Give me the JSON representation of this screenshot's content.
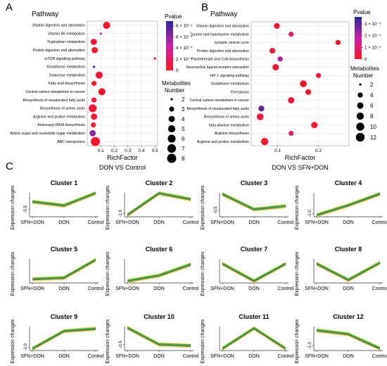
{
  "panels": {
    "a": "A",
    "b": "B",
    "c": "C"
  },
  "chart_data": [
    {
      "type": "scatter",
      "panel": "A",
      "title": "Pathway",
      "xlabel": "RichFactor",
      "subtitle": "DON VS Control",
      "xlim": [
        0.0,
        0.52
      ],
      "xticks": [
        0.1,
        0.2,
        0.3,
        0.4,
        0.5
      ],
      "xticklabels": [
        "0.1",
        "0.2",
        "0.3",
        "0.4",
        "0.5"
      ],
      "grid": true,
      "pvalue_legend": {
        "title": "Pvalue",
        "ticks": [
          0,
          0.0002,
          0.0004,
          0.0006,
          0.0008
        ],
        "labels": [
          "0",
          "2 × 10⁻⁴",
          "4 × 10⁻⁴",
          "6 × 10⁻⁴",
          "8 × 10⁻⁴"
        ],
        "max": 0.00088
      },
      "size_legend": {
        "title": [
          "Metabolites",
          "Number"
        ],
        "values": [
          2,
          3,
          4,
          5,
          6,
          7,
          8
        ]
      },
      "points": [
        {
          "pathway": "Vitamin digestion and absorption",
          "rich": 0.143,
          "number": 5,
          "p": 2e-05
        },
        {
          "pathway": "Vitamin B6 metabolism",
          "rich": 0.1,
          "number": 2,
          "p": 0.00045
        },
        {
          "pathway": "Tryptophan metabolism",
          "rich": 0.048,
          "number": 4,
          "p": 4e-05
        },
        {
          "pathway": "Protein digestion and absorption",
          "rich": 0.055,
          "number": 4,
          "p": 3e-05
        },
        {
          "pathway": "mTOR signaling pathway",
          "rich": 0.5,
          "number": 2,
          "p": 3e-05
        },
        {
          "pathway": "Glutathione metabolism",
          "rich": 0.05,
          "number": 2,
          "p": 0.00085
        },
        {
          "pathway": "Galactose metabolism",
          "rich": 0.088,
          "number": 5,
          "p": 3e-05
        },
        {
          "pathway": "Fatty acid biosynthesis",
          "rich": 0.05,
          "number": 3,
          "p": 5e-05
        },
        {
          "pathway": "Central carbon metabolism in cancer",
          "rich": 0.108,
          "number": 5,
          "p": 2e-05
        },
        {
          "pathway": "Biosynthesis of unsaturated fatty acids",
          "rich": 0.05,
          "number": 3,
          "p": 3e-05
        },
        {
          "pathway": "Biosynthesis of amino acids",
          "rich": 0.04,
          "number": 6,
          "p": 4e-05
        },
        {
          "pathway": "Arginine and proline metabolism",
          "rich": 0.05,
          "number": 4,
          "p": 3e-05
        },
        {
          "pathway": "Aminoacyl-tRNA biosynthesis",
          "rich": 0.045,
          "number": 3,
          "p": 5e-05
        },
        {
          "pathway": "Amino sugar and nucleotide sugar metabolism",
          "rich": 0.04,
          "number": 4,
          "p": 0.0006
        },
        {
          "pathway": "ABC transporters",
          "rich": 0.06,
          "number": 8,
          "p": 2e-05
        }
      ]
    },
    {
      "type": "scatter",
      "panel": "B",
      "title": "Pathway",
      "xlabel": "RichFactor",
      "subtitle": "DON VS SFN+DON",
      "xlim": [
        0.035,
        0.275
      ],
      "xticks": [
        0.1,
        0.2
      ],
      "xticklabels": [
        "0.1",
        "0.2"
      ],
      "grid": true,
      "pvalue_legend": {
        "title": "Pvalue",
        "ticks": [
          0,
          0.0001,
          0.0002,
          0.0003
        ],
        "labels": [
          "0",
          "1 × 10⁻⁴",
          "2 × 10⁻⁴",
          "3 × 10⁻⁴"
        ],
        "max": 0.00036
      },
      "size_legend": {
        "title": [
          "Metabolites",
          "Number"
        ],
        "values": [
          2,
          4,
          6,
          8,
          10,
          12
        ]
      },
      "points": [
        {
          "pathway": "Vitamin digestion and absorption",
          "rich": 0.098,
          "number": 5,
          "p": 1e-05
        },
        {
          "pathway": "Taurine and hypotaurine metabolism",
          "rich": 0.133,
          "number": 4,
          "p": 9e-05
        },
        {
          "pathway": "synaptic vesicle cycle",
          "rich": 0.248,
          "number": 4,
          "p": 1e-05
        },
        {
          "pathway": "Protein digestion and absorption",
          "rich": 0.087,
          "number": 5,
          "p": 3e-05
        },
        {
          "pathway": "Pantothenate and CoA biosynthesis",
          "rich": 0.106,
          "number": 4,
          "p": 0.0002
        },
        {
          "pathway": "Neuroactive ligand-receptor interaction",
          "rich": 0.095,
          "number": 6,
          "p": 1e-05
        },
        {
          "pathway": "HIF-1 signaling pathway",
          "rich": 0.2,
          "number": 4,
          "p": 1e-05
        },
        {
          "pathway": "Glutathione metabolism",
          "rich": 0.163,
          "number": 7,
          "p": 1e-05
        },
        {
          "pathway": "Ferroptosis",
          "rich": 0.175,
          "number": 5,
          "p": 1e-05
        },
        {
          "pathway": "Central carbon metabolism in cancer",
          "rich": 0.133,
          "number": 6,
          "p": 2e-05
        },
        {
          "pathway": "Biosynthesis of unsaturated fatty acids",
          "rich": 0.06,
          "number": 5,
          "p": 0.0003
        },
        {
          "pathway": "Biosynthesis of amino acids",
          "rich": 0.057,
          "number": 7,
          "p": 2e-05
        },
        {
          "pathway": "beta-Alanine metabolism",
          "rich": 0.19,
          "number": 6,
          "p": 1e-05
        },
        {
          "pathway": "Arginine biosynthesis",
          "rich": 0.133,
          "number": 4,
          "p": 0.0001
        },
        {
          "pathway": "Arginine and proline metabolism",
          "rich": 0.068,
          "number": 8,
          "p": 1e-05
        }
      ]
    },
    {
      "type": "line",
      "panel": "C",
      "ylabel": "Expression changes",
      "categories": [
        "SFN+DON",
        "DON",
        "Control"
      ],
      "clusters": [
        {
          "name": "Cluster 1",
          "ytick": "-0.5",
          "ylim": [
            -1.0,
            0.6
          ],
          "tickval": -0.5,
          "values": [
            0.0,
            -0.25,
            0.58
          ]
        },
        {
          "name": "Cluster 2",
          "ytick": "-1.0",
          "ylim": [
            -1.3,
            0.9
          ],
          "tickval": -1.0,
          "values": [
            -1.15,
            0.85,
            0.3
          ]
        },
        {
          "name": "Cluster 3",
          "ytick": "-0.5",
          "ylim": [
            -1.0,
            0.8
          ],
          "tickval": -0.5,
          "values": [
            0.7,
            -0.45,
            -0.2
          ]
        },
        {
          "name": "Cluster 4",
          "ytick": "-1.0",
          "ylim": [
            -1.3,
            1.0
          ],
          "tickval": -1.0,
          "values": [
            -1.15,
            -0.2,
            0.9
          ]
        },
        {
          "name": "Cluster 5",
          "ytick": "",
          "ylim": [
            -1.0,
            1.6
          ],
          "tickval": null,
          "values": [
            -0.6,
            -0.45,
            1.5
          ]
        },
        {
          "name": "Cluster 6",
          "ytick": "",
          "ylim": [
            -1.0,
            1.6
          ],
          "tickval": null,
          "values": [
            -0.8,
            -0.2,
            1.0
          ]
        },
        {
          "name": "Cluster 7",
          "ytick": "",
          "ylim": [
            -1.5,
            1.0
          ],
          "tickval": null,
          "values": [
            0.5,
            -1.3,
            0.5
          ]
        },
        {
          "name": "Cluster 8",
          "ytick": "",
          "ylim": [
            -1.5,
            1.0
          ],
          "tickval": null,
          "values": [
            0.5,
            -1.2,
            0.6
          ]
        },
        {
          "name": "Cluster 9",
          "ytick": "-1.0",
          "ylim": [
            -1.3,
            0.8
          ],
          "tickval": -1.0,
          "values": [
            -1.15,
            0.4,
            0.6
          ]
        },
        {
          "name": "Cluster 10",
          "ytick": "-0.5",
          "ylim": [
            -1.0,
            1.0
          ],
          "tickval": -0.5,
          "values": [
            0.9,
            -0.5,
            -0.6
          ]
        },
        {
          "name": "Cluster 11",
          "ytick": "",
          "ylim": [
            -1.5,
            1.2
          ],
          "tickval": null,
          "values": [
            -1.3,
            1.0,
            -1.3
          ]
        },
        {
          "name": "Cluster 12",
          "ytick": "-1.0",
          "ylim": [
            -1.5,
            1.0
          ],
          "tickval": -1.0,
          "values": [
            0.6,
            0.2,
            -1.3
          ]
        }
      ]
    }
  ]
}
